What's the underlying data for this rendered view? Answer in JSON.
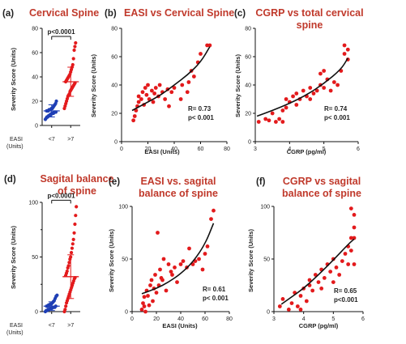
{
  "colors": {
    "red": "#e31a1c",
    "blue": "#1f3fb5",
    "fit": "#111111",
    "title": "#c0392b"
  },
  "chart_data": [
    {
      "type": "scatter",
      "subtype": "dot-plot",
      "panel_label": "(a)",
      "title": "Cervical Spine",
      "ylabel": "Severity Score (Units)",
      "xlabel": "EASI",
      "xlabel_unit": "(Units)",
      "categories": [
        "<7",
        ">7"
      ],
      "ylim": [
        0,
        80
      ],
      "yticks": [
        "0",
        "20",
        "40",
        "60",
        "80"
      ],
      "significance": "p<0.0001",
      "series": [
        {
          "name": "<7",
          "color": "#1f3fb5",
          "mean": 12,
          "sd": 5,
          "values": [
            5,
            6,
            7,
            7,
            8,
            8,
            9,
            9,
            10,
            10,
            10,
            11,
            11,
            11,
            12,
            12,
            12,
            13,
            13,
            13,
            14,
            14,
            15,
            16,
            17,
            18,
            20
          ]
        },
        {
          "name": ">7",
          "color": "#e31a1c",
          "mean": 36,
          "sd": 12,
          "values": [
            14,
            16,
            18,
            20,
            22,
            24,
            25,
            26,
            28,
            29,
            30,
            31,
            32,
            33,
            34,
            35,
            36,
            37,
            38,
            39,
            40,
            41,
            42,
            44,
            46,
            48,
            50,
            55,
            62,
            65,
            68
          ]
        }
      ]
    },
    {
      "type": "scatter",
      "panel_label": "(b)",
      "title": "EASI vs Cervical Spine",
      "xlabel": "EASI (Units)",
      "ylabel": "Severity Score (Units)",
      "xlim": [
        0,
        80
      ],
      "ylim": [
        0,
        80
      ],
      "xticks": [
        "0",
        "20",
        "40",
        "60",
        "80"
      ],
      "yticks": [
        "0",
        "20",
        "40",
        "60",
        "80"
      ],
      "stats": [
        "R= 0.73",
        "p< 0.001"
      ],
      "points": [
        [
          9,
          15
        ],
        [
          10,
          18
        ],
        [
          11,
          22
        ],
        [
          12,
          25
        ],
        [
          13,
          28
        ],
        [
          13,
          32
        ],
        [
          15,
          30
        ],
        [
          16,
          35
        ],
        [
          17,
          26
        ],
        [
          18,
          38
        ],
        [
          19,
          33
        ],
        [
          20,
          40
        ],
        [
          21,
          30
        ],
        [
          23,
          36
        ],
        [
          24,
          28
        ],
        [
          25,
          34
        ],
        [
          26,
          38
        ],
        [
          28,
          32
        ],
        [
          29,
          40
        ],
        [
          31,
          35
        ],
        [
          33,
          30
        ],
        [
          35,
          37
        ],
        [
          36,
          25
        ],
        [
          38,
          35
        ],
        [
          40,
          38
        ],
        [
          45,
          30
        ],
        [
          46,
          40
        ],
        [
          50,
          35
        ],
        [
          51,
          42
        ],
        [
          53,
          50
        ],
        [
          55,
          46
        ],
        [
          58,
          56
        ],
        [
          60,
          62
        ],
        [
          65,
          68
        ],
        [
          67,
          68
        ]
      ],
      "fit": [
        [
          8,
          22
        ],
        [
          20,
          28
        ],
        [
          30,
          33
        ],
        [
          40,
          40
        ],
        [
          50,
          47
        ],
        [
          60,
          56
        ],
        [
          67,
          67
        ]
      ]
    },
    {
      "type": "scatter",
      "panel_label": "(c)",
      "title": [
        "CGRP vs total cervical",
        "spine"
      ],
      "xlabel": "CGRP (pg/ml)",
      "ylabel": "Severity Score (Units)",
      "xlim": [
        3,
        6
      ],
      "ylim": [
        0,
        80
      ],
      "xticks": [
        "3",
        "4",
        "5",
        "6"
      ],
      "yticks": [
        "0",
        "20",
        "40",
        "60",
        "80"
      ],
      "stats": [
        "R= 0.74",
        "p< 0.001"
      ],
      "points": [
        [
          3.1,
          14
        ],
        [
          3.3,
          16
        ],
        [
          3.4,
          15
        ],
        [
          3.5,
          20
        ],
        [
          3.6,
          14
        ],
        [
          3.7,
          16
        ],
        [
          3.8,
          14
        ],
        [
          3.8,
          22
        ],
        [
          3.9,
          24
        ],
        [
          3.9,
          30
        ],
        [
          4.0,
          28
        ],
        [
          4.1,
          32
        ],
        [
          4.2,
          34
        ],
        [
          4.2,
          26
        ],
        [
          4.3,
          30
        ],
        [
          4.4,
          36
        ],
        [
          4.5,
          32
        ],
        [
          4.6,
          38
        ],
        [
          4.6,
          30
        ],
        [
          4.7,
          34
        ],
        [
          4.8,
          36
        ],
        [
          4.9,
          40
        ],
        [
          4.9,
          48
        ],
        [
          5.0,
          50
        ],
        [
          5.0,
          38
        ],
        [
          5.1,
          44
        ],
        [
          5.2,
          36
        ],
        [
          5.3,
          42
        ],
        [
          5.4,
          40
        ],
        [
          5.5,
          50
        ],
        [
          5.6,
          62
        ],
        [
          5.6,
          68
        ],
        [
          5.7,
          65
        ],
        [
          5.7,
          58
        ]
      ],
      "fit": [
        [
          3.05,
          18
        ],
        [
          3.5,
          22
        ],
        [
          4.0,
          27
        ],
        [
          4.5,
          33
        ],
        [
          5.0,
          41
        ],
        [
          5.5,
          51
        ],
        [
          5.7,
          59
        ]
      ]
    },
    {
      "type": "scatter",
      "subtype": "dot-plot",
      "panel_label": "(d)",
      "title": [
        "Sagital balance",
        "of spine"
      ],
      "ylabel": "Severity Score (Units)",
      "xlabel": "EASI",
      "xlabel_unit": "(Units)",
      "categories": [
        "<7",
        ">7"
      ],
      "ylim": [
        0,
        100
      ],
      "yticks": [
        "0",
        "50",
        "100"
      ],
      "yticks_minor": [
        "25",
        "75"
      ],
      "significance": "p<0.0001",
      "series": [
        {
          "name": "<7",
          "color": "#1f3fb5",
          "mean": 5,
          "sd": 4,
          "values": [
            0,
            1,
            1,
            2,
            2,
            3,
            3,
            3,
            4,
            4,
            4,
            5,
            5,
            5,
            6,
            6,
            7,
            7,
            8,
            9,
            10,
            12,
            14,
            15
          ]
        },
        {
          "name": ">7",
          "color": "#e31a1c",
          "mean": 32,
          "sd": 20,
          "values": [
            0,
            2,
            5,
            8,
            10,
            12,
            14,
            16,
            18,
            20,
            22,
            24,
            26,
            28,
            30,
            31,
            33,
            35,
            37,
            40,
            42,
            45,
            48,
            50,
            54,
            58,
            62,
            66,
            72,
            80,
            88,
            96
          ]
        }
      ]
    },
    {
      "type": "scatter",
      "panel_label": "(e)",
      "title": [
        "EASI vs. sagital",
        "balance of spine"
      ],
      "xlabel": "EASI (Units)",
      "ylabel": "Severity Score (Units)",
      "xlim": [
        0,
        80
      ],
      "ylim": [
        0,
        100
      ],
      "xticks": [
        "0",
        "20",
        "40",
        "60",
        "80"
      ],
      "yticks": [
        "0",
        "50",
        "100"
      ],
      "stats": [
        "R= 0.61",
        "p< 0.001"
      ],
      "points": [
        [
          8,
          2
        ],
        [
          9,
          8
        ],
        [
          10,
          5
        ],
        [
          10,
          14
        ],
        [
          11,
          0
        ],
        [
          12,
          20
        ],
        [
          13,
          15
        ],
        [
          14,
          6
        ],
        [
          15,
          25
        ],
        [
          16,
          30
        ],
        [
          17,
          10
        ],
        [
          18,
          22
        ],
        [
          19,
          35
        ],
        [
          20,
          18
        ],
        [
          21,
          75
        ],
        [
          22,
          25
        ],
        [
          23,
          40
        ],
        [
          24,
          32
        ],
        [
          25,
          30
        ],
        [
          26,
          50
        ],
        [
          28,
          20
        ],
        [
          30,
          45
        ],
        [
          32,
          38
        ],
        [
          33,
          35
        ],
        [
          35,
          42
        ],
        [
          37,
          28
        ],
        [
          40,
          45
        ],
        [
          42,
          48
        ],
        [
          45,
          42
        ],
        [
          47,
          60
        ],
        [
          50,
          45
        ],
        [
          52,
          48
        ],
        [
          55,
          50
        ],
        [
          58,
          40
        ],
        [
          60,
          55
        ],
        [
          62,
          62
        ],
        [
          65,
          88
        ],
        [
          67,
          96
        ]
      ],
      "fit": [
        [
          8,
          17
        ],
        [
          20,
          22
        ],
        [
          30,
          28
        ],
        [
          40,
          36
        ],
        [
          50,
          47
        ],
        [
          60,
          64
        ],
        [
          67,
          84
        ]
      ]
    },
    {
      "type": "scatter",
      "panel_label": "(f)",
      "title": [
        "CGRP vs sagital",
        "balance of spine"
      ],
      "xlabel": "CGRP (pg/ml)",
      "ylabel": "Severity Score (Units)",
      "xlim": [
        3,
        6
      ],
      "ylim": [
        0,
        100
      ],
      "xticks": [
        "3",
        "4",
        "5",
        "6"
      ],
      "yticks": [
        "0",
        "50",
        "100"
      ],
      "stats": [
        "R= 0.65",
        "p<0.001"
      ],
      "points": [
        [
          3.2,
          5
        ],
        [
          3.3,
          12
        ],
        [
          3.5,
          2
        ],
        [
          3.6,
          8
        ],
        [
          3.7,
          18
        ],
        [
          3.8,
          5
        ],
        [
          3.9,
          15
        ],
        [
          3.9,
          2
        ],
        [
          4.0,
          22
        ],
        [
          4.1,
          10
        ],
        [
          4.2,
          25
        ],
        [
          4.2,
          30
        ],
        [
          4.3,
          20
        ],
        [
          4.4,
          35
        ],
        [
          4.5,
          28
        ],
        [
          4.6,
          40
        ],
        [
          4.6,
          22
        ],
        [
          4.7,
          32
        ],
        [
          4.8,
          45
        ],
        [
          4.9,
          38
        ],
        [
          5.0,
          50
        ],
        [
          5.0,
          28
        ],
        [
          5.1,
          42
        ],
        [
          5.2,
          35
        ],
        [
          5.3,
          48
        ],
        [
          5.4,
          55
        ],
        [
          5.5,
          62
        ],
        [
          5.5,
          45
        ],
        [
          5.6,
          70
        ],
        [
          5.6,
          58
        ],
        [
          5.7,
          92
        ],
        [
          5.7,
          80
        ],
        [
          5.7,
          45
        ],
        [
          5.7,
          70
        ],
        [
          5.6,
          98
        ]
      ],
      "fit": [
        [
          3.25,
          7
        ],
        [
          3.5,
          12
        ],
        [
          4.0,
          22
        ],
        [
          4.5,
          35
        ],
        [
          5.0,
          49
        ],
        [
          5.5,
          64
        ],
        [
          5.7,
          69
        ]
      ]
    }
  ]
}
